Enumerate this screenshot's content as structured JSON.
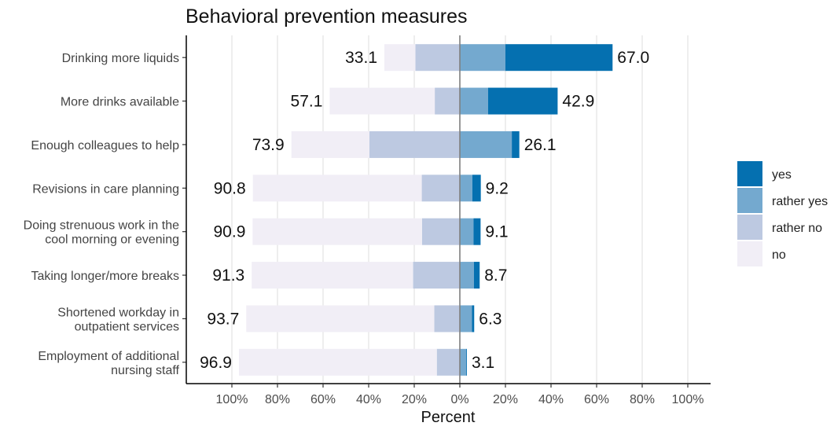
{
  "chart_data": {
    "type": "bar",
    "subtype": "diverging-stacked-horizontal",
    "title": "Behavioral prevention measures",
    "xlabel": "Percent",
    "ylabel": "",
    "xlim": [
      -100,
      100
    ],
    "xticks": [
      "100%",
      "80%",
      "60%",
      "40%",
      "20%",
      "0%",
      "20%",
      "40%",
      "60%",
      "80%",
      "100%"
    ],
    "grid": true,
    "legend_position": "right",
    "categories": [
      [
        "Drinking more liquids"
      ],
      [
        "More drinks available"
      ],
      [
        "Enough colleagues to help"
      ],
      [
        "Revisions in care planning"
      ],
      [
        "Doing strenuous work in the",
        "cool morning or evening"
      ],
      [
        "Taking longer/more breaks"
      ],
      [
        "Shortened workday in",
        "outpatient services"
      ],
      [
        "Employment of additional",
        "nursing staff"
      ]
    ],
    "series": [
      {
        "name": "yes",
        "color": "#0570b0",
        "side": "positive",
        "values": [
          47.0,
          30.5,
          3.3,
          3.7,
          3.1,
          2.5,
          1.0,
          0.3
        ]
      },
      {
        "name": "rather yes",
        "color": "#74a9cf",
        "side": "positive",
        "values": [
          20.0,
          12.4,
          22.8,
          5.5,
          6.0,
          6.2,
          5.3,
          2.8
        ]
      },
      {
        "name": "rather no",
        "color": "#bdc9e1",
        "side": "negative",
        "values": [
          19.5,
          11.0,
          39.7,
          16.7,
          16.6,
          20.5,
          11.2,
          10.1
        ]
      },
      {
        "name": "no",
        "color": "#f1eef6",
        "side": "negative",
        "values": [
          13.6,
          46.1,
          34.2,
          74.1,
          74.3,
          70.8,
          82.5,
          86.8
        ]
      }
    ],
    "totals_negative": [
      "33.1",
      "57.1",
      "73.9",
      "90.8",
      "90.9",
      "91.3",
      "93.7",
      "96.9"
    ],
    "totals_positive": [
      "67.0",
      "42.9",
      "26.1",
      "9.2",
      "9.1",
      "8.7",
      "6.3",
      "3.1"
    ]
  }
}
